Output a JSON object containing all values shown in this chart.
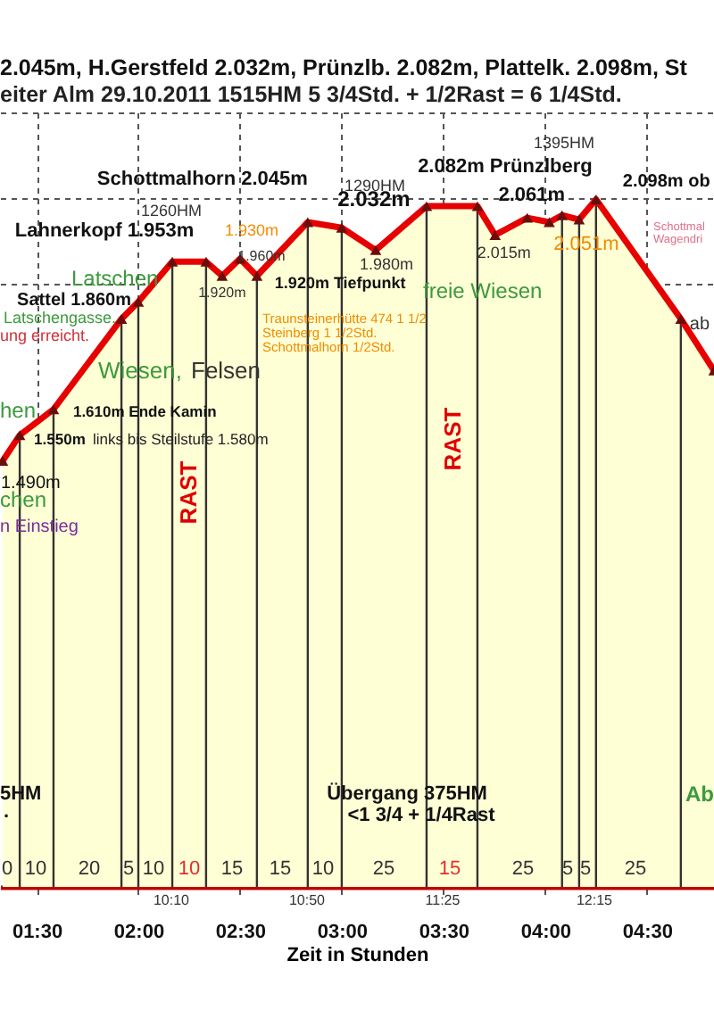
{
  "chart_data": {
    "type": "area",
    "title": "2.045m, H.Gerstfeld 2.032m, Prünzlb. 2.082m, Plattelk. 2.098m, St",
    "subtitle": "eiter Alm 29.10.2011 1515HM 5 3/4Std. + 1/2Rast = 6 1/4Std.",
    "xlabel": "Zeit in Stunden",
    "x": [
      1.333,
      1.417,
      1.583,
      1.917,
      2.0,
      2.167,
      2.333,
      2.412,
      2.5,
      2.583,
      2.833,
      3.0,
      3.167,
      3.417,
      3.667,
      3.754,
      3.912,
      4.02,
      4.083,
      4.167,
      4.25,
      4.667,
      4.83
    ],
    "series": [
      {
        "color": "#e60000",
        "values": [
          1.49,
          1.55,
          1.61,
          1.82,
          1.86,
          1.953,
          1.953,
          1.92,
          1.96,
          1.92,
          2.045,
          2.032,
          1.98,
          2.082,
          2.082,
          2.015,
          2.055,
          2.045,
          2.061,
          2.051,
          2.098,
          1.82,
          1.7
        ],
        "value_labels": [
          "1.490m",
          "1.550m",
          "1.610m Ende Kamin",
          null,
          "Sattel 1.860m",
          "Lahnerkopf 1.953m",
          null,
          "1.920m",
          "1.960m",
          "1.920m Tiefpunkt",
          "Schottmalhorn 2.045m",
          "2.032m",
          "1.980m",
          "2.082m Prünzlberg",
          null,
          "2.015m",
          null,
          null,
          "2.061m",
          "2.051m",
          "2.098m ob",
          "ab",
          null
        ]
      }
    ],
    "xlim": [
      1.32,
      4.83
    ],
    "ylim": [
      0.5,
      2.3
    ],
    "xticks": [
      {
        "value": 1.5,
        "label": "01:30"
      },
      {
        "value": 2,
        "label": "02:00"
      },
      {
        "value": 2.5,
        "label": "02:30"
      },
      {
        "value": 3,
        "label": "03:00"
      },
      {
        "value": 3.5,
        "label": "03:30"
      },
      {
        "value": 4,
        "label": "04:00"
      },
      {
        "value": 4.5,
        "label": "04:30"
      }
    ],
    "yticks": [
      {
        "value": 1.9,
        "label": null
      },
      {
        "value": 2.1,
        "label": null
      },
      {
        "value": 2.3,
        "label": null
      }
    ],
    "tick_labels": "x",
    "grid": true,
    "marker": "triangle",
    "ref_lines": [
      {
        "axis": "x",
        "value": 1.417,
        "color": "#333333"
      },
      {
        "axis": "x",
        "value": 1.583,
        "color": "#333333"
      },
      {
        "axis": "x",
        "value": 1.917,
        "color": "#333333"
      },
      {
        "axis": "x",
        "value": 2.0,
        "color": "#333333"
      },
      {
        "axis": "x",
        "value": 2.167,
        "color": "#333333"
      },
      {
        "axis": "x",
        "value": 2.333,
        "color": "#333333"
      },
      {
        "axis": "x",
        "value": 2.583,
        "color": "#333333"
      },
      {
        "axis": "x",
        "value": 2.833,
        "color": "#333333"
      },
      {
        "axis": "x",
        "value": 3.0,
        "color": "#333333"
      },
      {
        "axis": "x",
        "value": 3.417,
        "color": "#333333"
      },
      {
        "axis": "x",
        "value": 3.667,
        "color": "#333333"
      },
      {
        "axis": "x",
        "value": 4.083,
        "color": "#333333"
      },
      {
        "axis": "x",
        "value": 4.167,
        "color": "#333333"
      },
      {
        "axis": "x",
        "value": 4.25,
        "color": "#333333"
      },
      {
        "axis": "x",
        "value": 4.667,
        "color": "#333333"
      }
    ],
    "annotations": [
      "1260HM",
      "1290HM",
      "1395HM",
      "1.930m",
      "Latschen",
      "Latschengasse.",
      "ung erreicht.",
      "Wiesen,",
      "Felsen",
      "hen",
      "chen",
      "n Einstieg",
      "RAST",
      "RAST",
      "freie Wiesen",
      "Traunsteinerhütte 474 1 1/2",
      "Steinberg 1 1/2Std.",
      "Schottmalhorn 1/2Std.",
      "Schottmal",
      "Wagendri",
      "5HM",
      ".",
      "Übergang 375HM",
      "<1 3/4 + 1/4Rast",
      "Ab",
      "links bis Steilstufe 1.580m",
      "0",
      "10",
      "20",
      "5",
      "10",
      "10",
      "15",
      "15",
      "10",
      "25",
      "15",
      "25",
      "5",
      "5",
      "25",
      "10:10",
      "10:50",
      "11:25",
      "12:15"
    ]
  }
}
